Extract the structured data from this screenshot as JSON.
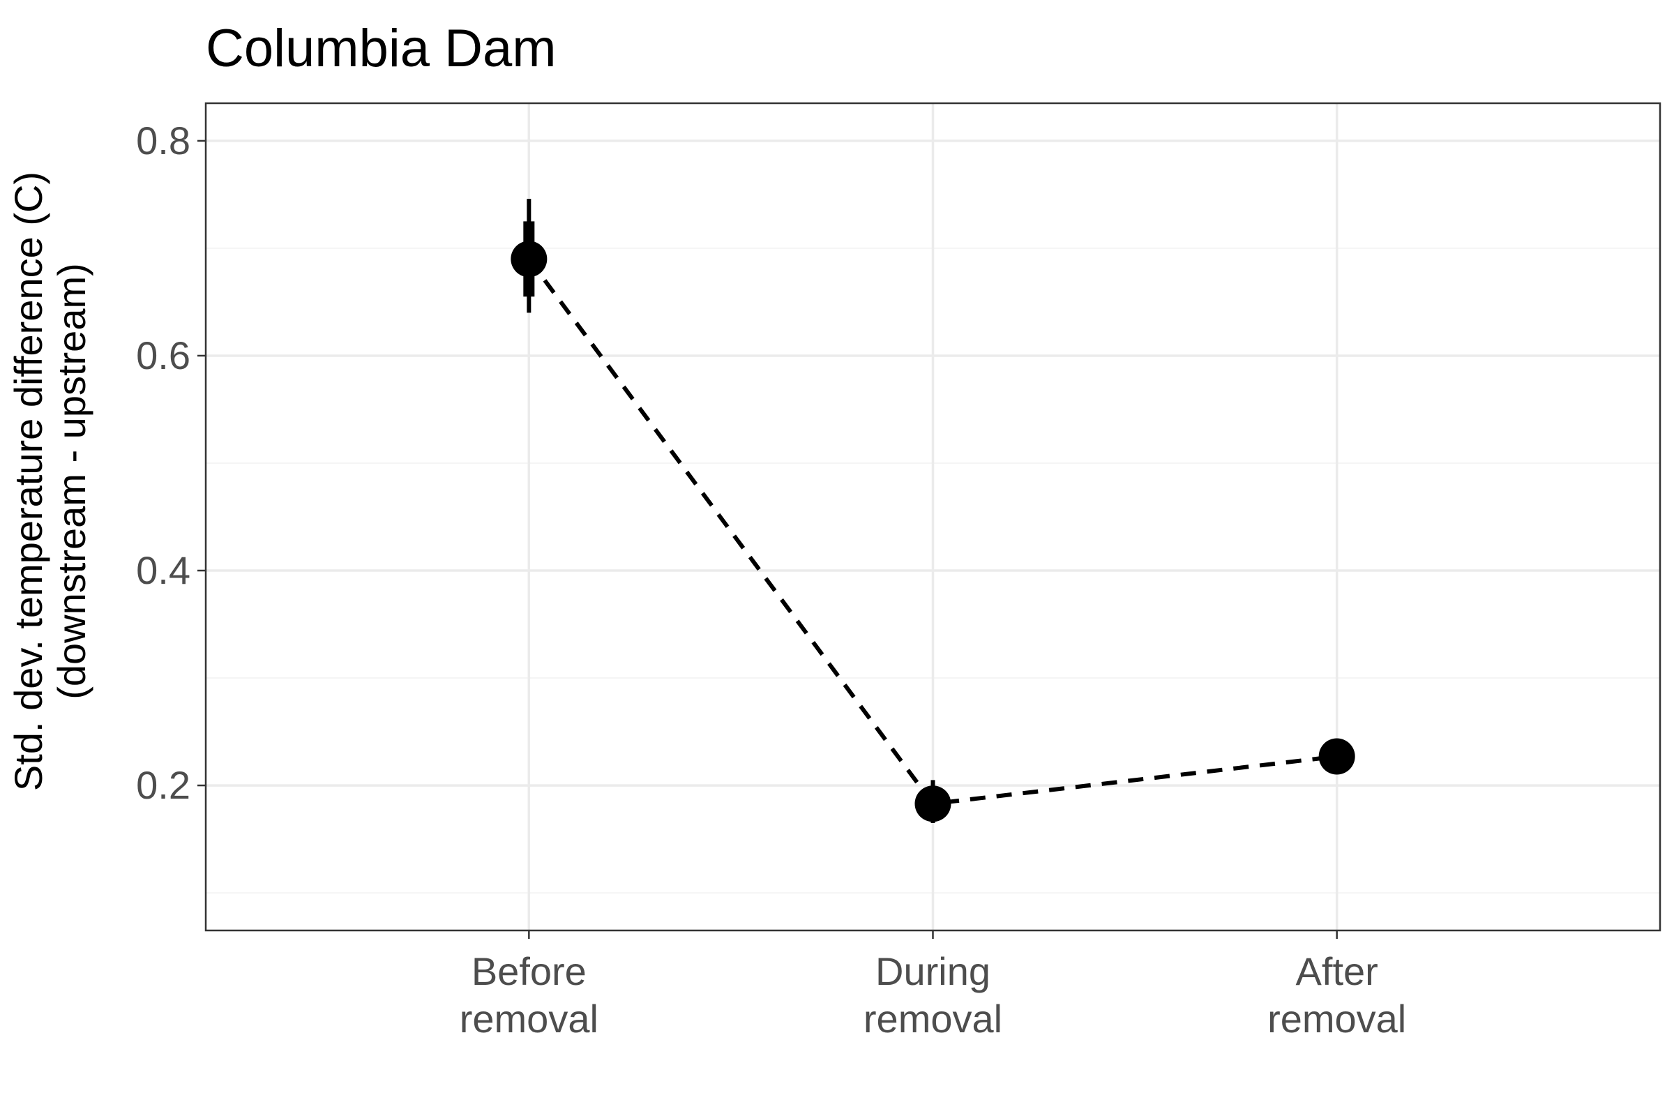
{
  "chart_data": {
    "type": "line",
    "title": "Columbia Dam",
    "xlabel": "",
    "ylabel": [
      "Std. dev. temperature difference (C)",
      "(downstream - upstream)"
    ],
    "categories": [
      [
        "Before",
        "removal"
      ],
      [
        "During",
        "removal"
      ],
      [
        "After",
        "removal"
      ]
    ],
    "series": [
      {
        "values": [
          0.69,
          0.183,
          0.227
        ],
        "inner_interval": [
          [
            0.655,
            0.725
          ],
          [
            0.178,
            0.19
          ],
          [
            0.222,
            0.232
          ]
        ],
        "outer_interval": [
          [
            0.64,
            0.746
          ],
          [
            0.165,
            0.205
          ],
          [
            0.218,
            0.236
          ]
        ],
        "line_style": "dashed",
        "color": "#000000"
      }
    ],
    "ylim": [
      0.065,
      0.835
    ],
    "yticks": [
      0.2,
      0.4,
      0.6,
      0.8
    ],
    "ytick_labels": [
      "0.2",
      "0.4",
      "0.6",
      "0.8"
    ],
    "grid": true,
    "legend": "none"
  },
  "colors": {
    "background": "#ffffff",
    "panel_border": "#333333",
    "grid_major": "#ebebeb",
    "grid_minor": "#f5f5f5",
    "data": "#000000",
    "tick_text": "#4d4d4d"
  }
}
